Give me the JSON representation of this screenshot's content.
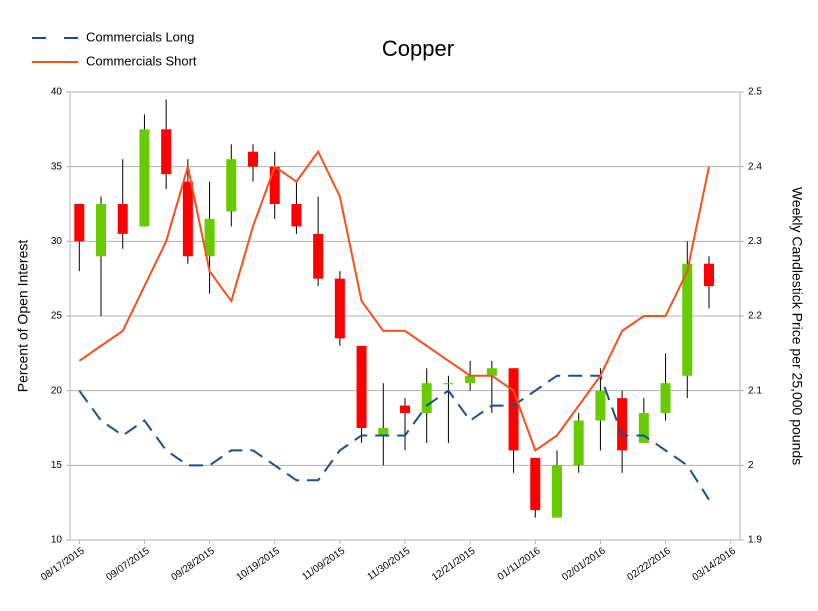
{
  "chart_data": {
    "type": "candlestick",
    "title": "Copper",
    "ylabel": "Percent of Open Interest",
    "y2label": "Weekly Candlestick Price per 25,000 pounds",
    "x": [
      "2015-08-17",
      "2015-08-24",
      "2015-08-31",
      "2015-09-07",
      "2015-09-14",
      "2015-09-21",
      "2015-09-28",
      "2015-10-05",
      "2015-10-12",
      "2015-10-19",
      "2015-10-26",
      "2015-11-02",
      "2015-11-09",
      "2015-11-16",
      "2015-11-23",
      "2015-11-30",
      "2015-12-07",
      "2015-12-14",
      "2015-12-21",
      "2015-12-28",
      "2016-01-04",
      "2016-01-11",
      "2016-01-18",
      "2016-01-25",
      "2016-02-01",
      "2016-02-08",
      "2016-02-15",
      "2016-02-22",
      "2016-02-29",
      "2016-03-07"
    ],
    "xlim": [
      "2015-08-14",
      "2016-03-17"
    ],
    "xticks": [
      {
        "value": "2015-08-17",
        "label": "08/17/2015"
      },
      {
        "value": "2015-09-07",
        "label": "09/07/2015"
      },
      {
        "value": "2015-09-28",
        "label": "09/28/2015"
      },
      {
        "value": "2015-10-19",
        "label": "10/19/2015"
      },
      {
        "value": "2015-11-09",
        "label": "11/09/2015"
      },
      {
        "value": "2015-11-30",
        "label": "11/30/2015"
      },
      {
        "value": "2015-12-21",
        "label": "12/21/2015"
      },
      {
        "value": "2016-01-11",
        "label": "01/11/2016"
      },
      {
        "value": "2016-02-01",
        "label": "02/01/2016"
      },
      {
        "value": "2016-02-22",
        "label": "02/22/2016"
      },
      {
        "value": "2016-03-14",
        "label": "03/14/2016"
      }
    ],
    "ylim": [
      10,
      40
    ],
    "yticks": [
      10,
      15,
      20,
      25,
      30,
      35,
      40
    ],
    "y2lim": [
      1.9,
      2.5
    ],
    "y2ticks": [
      1.9,
      2,
      2.1,
      2.2,
      2.3,
      2.4,
      2.5
    ],
    "grid": true,
    "legend": "top-left",
    "candles": {
      "axis": "y2",
      "up_color": "#66cc00",
      "down_color": "#ff0000",
      "open": [
        2.35,
        2.28,
        2.35,
        2.32,
        2.45,
        2.38,
        2.28,
        2.34,
        2.42,
        2.4,
        2.35,
        2.31,
        2.25,
        2.16,
        2.04,
        2.08,
        2.07,
        2.11,
        2.11,
        2.12,
        2.13,
        2.01,
        1.93,
        2.0,
        2.06,
        2.09,
        2.03,
        2.07,
        2.12,
        2.27
      ],
      "close": [
        2.3,
        2.35,
        2.31,
        2.45,
        2.39,
        2.28,
        2.33,
        2.41,
        2.4,
        2.35,
        2.32,
        2.25,
        2.17,
        2.05,
        2.05,
        2.07,
        2.11,
        2.11,
        2.12,
        2.13,
        2.02,
        1.94,
        2.0,
        2.06,
        2.1,
        2.02,
        2.07,
        2.11,
        2.27,
        2.24
      ],
      "high": [
        2.35,
        2.36,
        2.41,
        2.47,
        2.49,
        2.41,
        2.38,
        2.43,
        2.43,
        2.42,
        2.38,
        2.36,
        2.26,
        2.16,
        2.11,
        2.09,
        2.13,
        2.12,
        2.14,
        2.14,
        2.13,
        2.01,
        2.02,
        2.07,
        2.13,
        2.1,
        2.09,
        2.15,
        2.3,
        2.28
      ],
      "low": [
        2.26,
        2.2,
        2.29,
        2.32,
        2.37,
        2.27,
        2.23,
        2.32,
        2.38,
        2.33,
        2.31,
        2.24,
        2.16,
        2.03,
        2.0,
        2.02,
        2.03,
        2.03,
        2.1,
        2.07,
        1.99,
        1.93,
        1.93,
        1.99,
        2.02,
        1.99,
        2.03,
        2.06,
        2.09,
        2.21
      ]
    },
    "series": [
      {
        "name": "Commercials Long",
        "color": "#1a4f8b",
        "style": "dashed",
        "values": [
          20,
          18,
          17,
          18,
          16,
          15,
          15,
          16,
          16,
          15,
          14,
          14,
          16,
          17,
          17,
          17,
          19,
          20,
          18,
          19,
          19,
          20,
          21,
          21,
          21,
          17,
          17,
          16,
          15,
          12.7
        ]
      },
      {
        "name": "Commercials Short",
        "color": "#f4511e",
        "style": "solid",
        "values": [
          22,
          23,
          24,
          27,
          30,
          35,
          28,
          26,
          31,
          35,
          34,
          36,
          33,
          26,
          24,
          24,
          23,
          22,
          21,
          21,
          20,
          16,
          17,
          19,
          21,
          24,
          25,
          25,
          28,
          35
        ]
      }
    ]
  }
}
